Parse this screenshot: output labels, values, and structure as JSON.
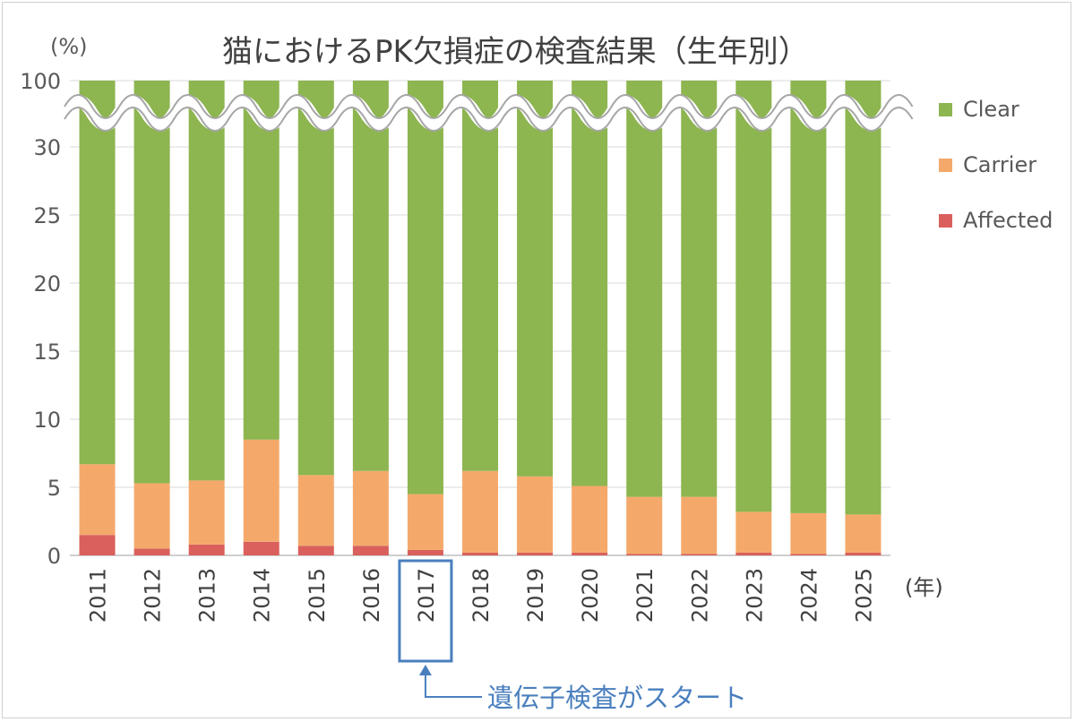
{
  "chart_data": {
    "type": "bar",
    "stacked": true,
    "title": "猫におけるPK欠損症の検査結果（生年別）",
    "ylabel": "(%)",
    "xlabel": "(年)",
    "ylim": [
      0,
      100
    ],
    "axis_break": {
      "from": 30,
      "to": 100
    },
    "yticks": [
      "0",
      "5",
      "10",
      "15",
      "20",
      "25",
      "30",
      "100"
    ],
    "grid": true,
    "legend_position": "right",
    "categories": [
      "2011",
      "2012",
      "2013",
      "2014",
      "2015",
      "2016",
      "2017",
      "2018",
      "2019",
      "2020",
      "2021",
      "2022",
      "2023",
      "2024",
      "2025"
    ],
    "series": [
      {
        "name": "Affected",
        "color": "#d9605c",
        "values": [
          1.5,
          0.5,
          0.8,
          1.0,
          0.7,
          0.7,
          0.4,
          0.2,
          0.2,
          0.2,
          0.1,
          0.1,
          0.2,
          0.1,
          0.2
        ]
      },
      {
        "name": "Carrier",
        "color": "#f4a96b",
        "values": [
          5.2,
          4.8,
          4.7,
          7.5,
          5.2,
          5.5,
          4.1,
          6.0,
          5.6,
          4.9,
          4.2,
          4.2,
          3.0,
          3.0,
          2.8
        ]
      },
      {
        "name": "Clear",
        "color": "#8db550",
        "values": [
          93.3,
          94.7,
          94.5,
          91.5,
          94.1,
          93.8,
          95.5,
          93.8,
          94.2,
          94.9,
          95.7,
          95.7,
          96.8,
          96.9,
          97.0
        ]
      }
    ],
    "legend_order": [
      "Clear",
      "Carrier",
      "Affected"
    ],
    "annotation": {
      "text": "遺伝子検査がスタート",
      "category": "2017",
      "color": "#4a7fbe"
    }
  }
}
